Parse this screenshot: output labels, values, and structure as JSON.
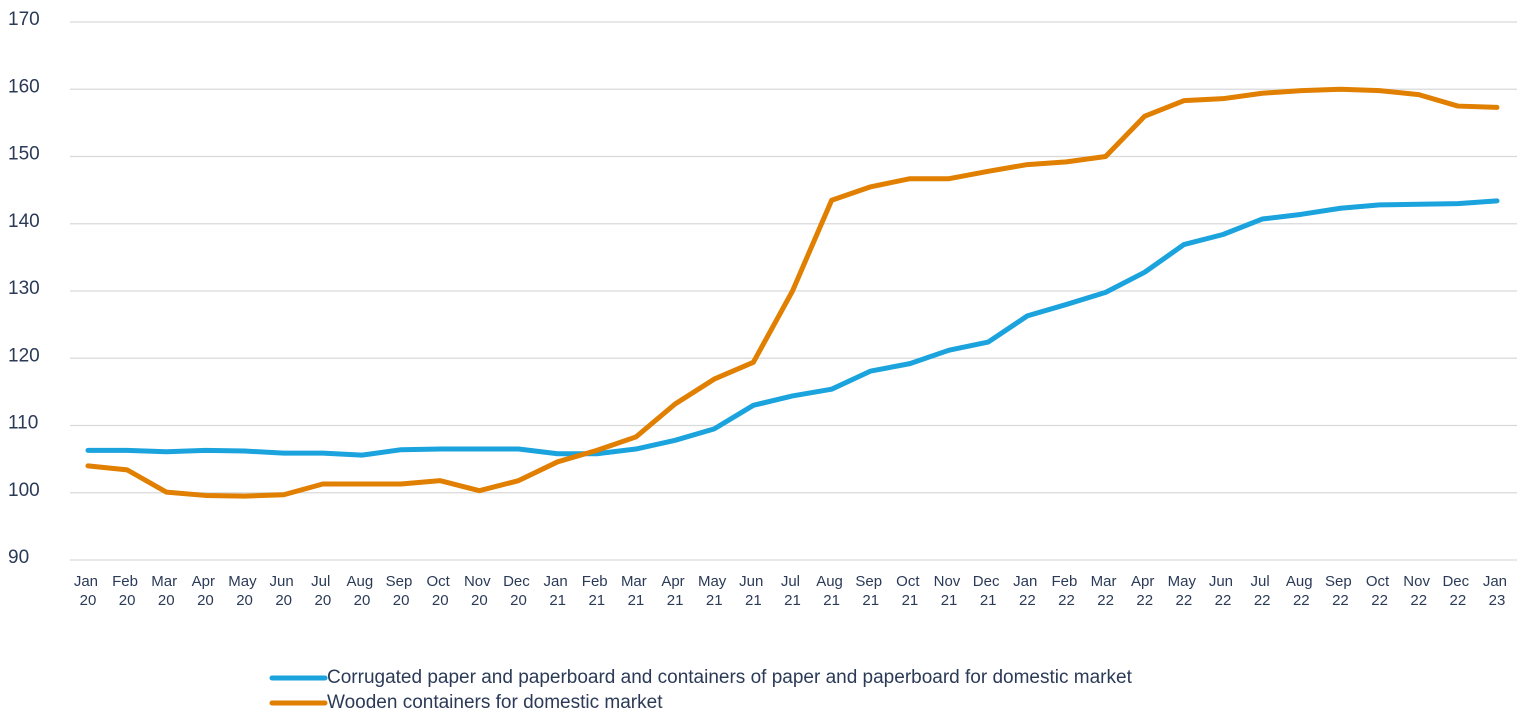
{
  "chart_data": {
    "type": "line",
    "categories": [
      "Jan 20",
      "Feb 20",
      "Mar 20",
      "Apr 20",
      "May 20",
      "Jun 20",
      "Jul 20",
      "Aug 20",
      "Sep 20",
      "Oct 20",
      "Nov 20",
      "Dec 20",
      "Jan 21",
      "Feb 21",
      "Mar 21",
      "Apr 21",
      "May 21",
      "Jun 21",
      "Jul 21",
      "Aug 21",
      "Sep 21",
      "Oct 21",
      "Nov 21",
      "Dec 21",
      "Jan 22",
      "Feb 22",
      "Mar 22",
      "Apr 22",
      "May 22",
      "Jun 22",
      "Jul 22",
      "Aug 22",
      "Sep 22",
      "Oct 22",
      "Nov 22",
      "Dec 22",
      "Jan 23"
    ],
    "series": [
      {
        "name": "Corrugated paper and paperboard and containers of paper and paperboard for domestic market",
        "color": "#1aa3dd",
        "values": [
          106.3,
          106.3,
          106.1,
          106.3,
          106.2,
          105.9,
          105.9,
          105.6,
          106.4,
          106.5,
          106.5,
          106.5,
          105.8,
          105.8,
          106.5,
          107.8,
          109.5,
          113,
          114.4,
          115.4,
          118.1,
          119.2,
          121.2,
          122.4,
          126.3,
          128,
          129.8,
          132.8,
          136.9,
          138.4,
          140.7,
          141.4,
          142.3,
          142.8,
          142.9,
          143,
          143.4
        ]
      },
      {
        "name": "Wooden containers for domestic market",
        "color": "#e07f00",
        "values": [
          104,
          103.4,
          100.1,
          99.6,
          99.5,
          99.7,
          101.3,
          101.3,
          101.3,
          101.8,
          100.3,
          101.8,
          104.6,
          106.3,
          108.3,
          113.2,
          116.9,
          119.4,
          130,
          143.5,
          145.5,
          146.7,
          146.7,
          147.8,
          148.8,
          149.2,
          150,
          156,
          158.3,
          158.6,
          159.4,
          159.8,
          160,
          159.8,
          159.2,
          157.5,
          157.3
        ]
      }
    ],
    "ylim": [
      90,
      170
    ],
    "yticks": [
      90,
      100,
      110,
      120,
      130,
      140,
      150,
      160,
      170
    ],
    "grid": true,
    "legend": "bottom"
  }
}
